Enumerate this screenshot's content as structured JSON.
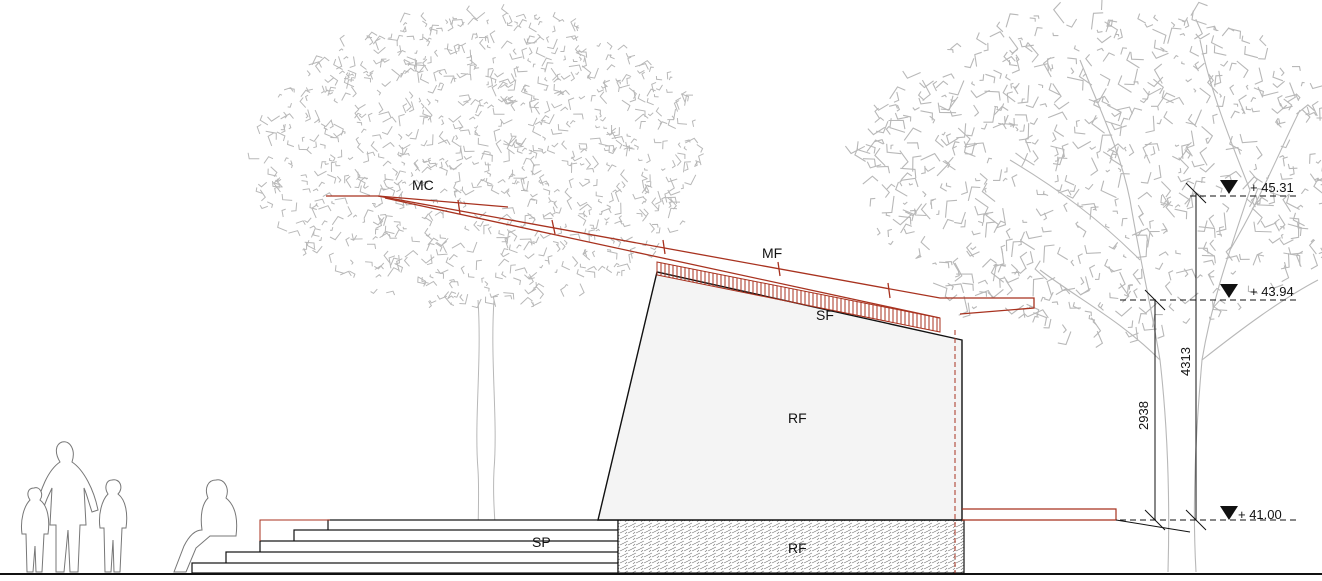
{
  "labels": {
    "mc": "MC",
    "mf": "MF",
    "sf": "SF",
    "rf_wall": "RF",
    "rf_base": "RF",
    "sp": "SP"
  },
  "levels": {
    "top": "+ 45.31",
    "mid": "+ 43.94",
    "ground": "+ 41.00"
  },
  "dimensions": {
    "wall_height": "2938",
    "total_height": "4313"
  },
  "colors": {
    "roof_red": "#a8321f",
    "tree_grey": "#b8b8b8",
    "line_black": "#111111",
    "wall_fill": "#f4f4f4"
  }
}
